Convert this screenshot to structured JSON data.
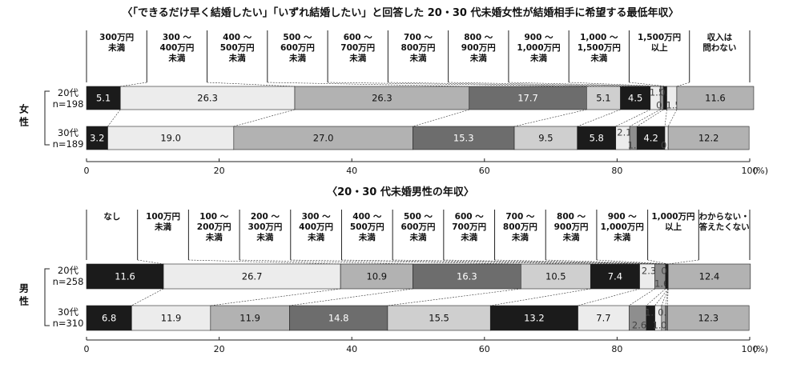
{
  "chart_data": [
    {
      "type": "bar",
      "stacked": true,
      "orientation": "horizontal",
      "title": "〈「できるだけ早く結婚したい」「いずれ結婚したい」と回答した 20・30 代未婚女性が結婚相手に希望する最低年収〉",
      "group_label": "女性",
      "categories": [
        "300万円\n未満",
        "300 ～\n400万円\n未満",
        "400 ～\n500万円\n未満",
        "500 ～\n600万円\n未満",
        "600 ～\n700万円\n未満",
        "700 ～\n800万円\n未満",
        "800 ～\n900万円\n未満",
        "900 ～\n1,000万円\n未満",
        "1,000 ～\n1,500万円\n未満",
        "1,500万円\n以上",
        "収入は\n問わない"
      ],
      "rows": [
        {
          "label_line1": "20代",
          "label_line2": "n=198",
          "values": [
            5.1,
            26.3,
            26.3,
            17.7,
            5.1,
            4.5,
            1.5,
            0.5,
            0.5,
            1.5,
            11.6
          ],
          "labels": [
            "5.1",
            "26.3",
            "26.3",
            "17.7",
            "5.1",
            "4.5",
            "1.5",
            "0.5",
            "0.5",
            "1.5",
            "11.6"
          ]
        },
        {
          "label_line1": "30代",
          "label_line2": "n=189",
          "values": [
            3.2,
            19.0,
            27.0,
            15.3,
            9.5,
            5.8,
            2.1,
            1.1,
            4.2,
            0.5,
            12.2
          ],
          "labels": [
            "3.2",
            "19.0",
            "27.0",
            "15.3",
            "9.5",
            "5.8",
            "2.1",
            "1.1",
            "4.2",
            "0.5",
            "12.2"
          ]
        }
      ],
      "xlim": [
        0,
        100
      ],
      "xticks": [
        "0",
        "20",
        "40",
        "60",
        "80",
        "100"
      ],
      "x_unit": "(%)",
      "colors": [
        "#1b1b1b",
        "#ececec",
        "#b2b2b2",
        "#6d6d6d",
        "#cfcfcf",
        "#1b1b1b",
        "#ececec",
        "#8e8e8e",
        "#1b1b1b",
        "#ececec",
        "#b2b2b2"
      ]
    },
    {
      "type": "bar",
      "stacked": true,
      "orientation": "horizontal",
      "title": "〈20・30 代未婚男性の年収〉",
      "group_label": "男性",
      "categories": [
        "なし",
        "100万円\n未満",
        "100 ～\n200万円\n未満",
        "200 ～\n300万円\n未満",
        "300 ～\n400万円\n未満",
        "400 ～\n500万円\n未満",
        "500 ～\n600万円\n未満",
        "600 ～\n700万円\n未満",
        "700 ～\n800万円\n未満",
        "800 ～\n900万円\n未満",
        "900 ～\n1,000万円\n未満",
        "1,000万円\n以上",
        "わからない・\n答えたくない"
      ],
      "rows": [
        {
          "label_line1": "20代",
          "label_line2": "n=258",
          "values": [
            11.6,
            26.7,
            10.9,
            16.3,
            10.5,
            7.4,
            2.3,
            1.6,
            0.4,
            0.0,
            0.0,
            0.0,
            12.4
          ],
          "labels": [
            "11.6",
            "26.7",
            "10.9",
            "16.3",
            "10.5",
            "7.4",
            "2.3",
            "1.6",
            "0.4",
            "",
            "",
            "",
            "12.4"
          ]
        },
        {
          "label_line1": "30代",
          "label_line2": "n=310",
          "values": [
            6.8,
            11.9,
            11.9,
            14.8,
            15.5,
            13.2,
            7.7,
            2.6,
            1.3,
            1.0,
            0.6,
            0.3,
            12.3
          ],
          "labels": [
            "6.8",
            "11.9",
            "11.9",
            "14.8",
            "15.5",
            "13.2",
            "7.7",
            "2.6",
            "1.3",
            "1.0",
            "0.6",
            "0.3",
            "12.3"
          ]
        }
      ],
      "xlim": [
        0,
        100
      ],
      "xticks": [
        "0",
        "20",
        "40",
        "60",
        "80",
        "100"
      ],
      "x_unit": "(%)",
      "colors": [
        "#1b1b1b",
        "#ececec",
        "#b2b2b2",
        "#6d6d6d",
        "#cfcfcf",
        "#1b1b1b",
        "#ececec",
        "#8e8e8e",
        "#1b1b1b",
        "#ececec",
        "#b2b2b2",
        "#6d6d6d",
        "#b2b2b2"
      ]
    }
  ]
}
